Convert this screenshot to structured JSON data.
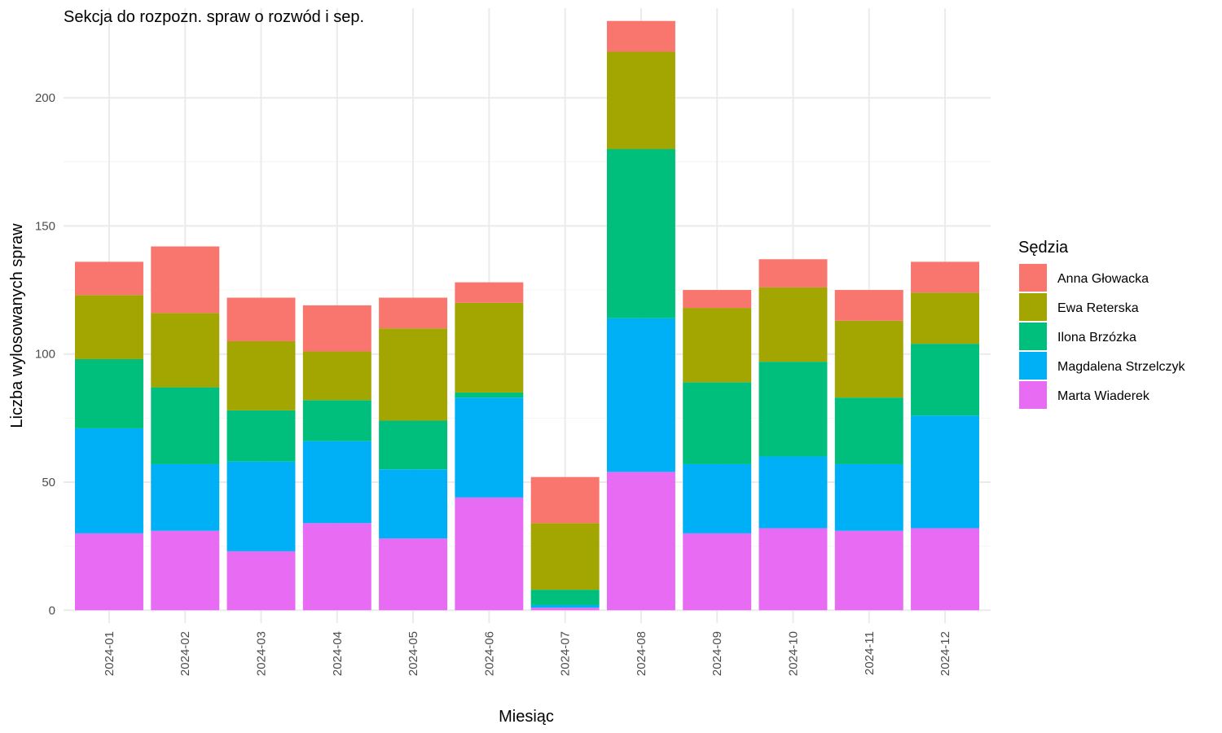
{
  "chart_data": {
    "type": "bar",
    "stacked": true,
    "title": "Sekcja do rozpozn. spraw o rozwód i sep.",
    "xlabel": "Miesiąc",
    "ylabel": "Liczba wylosowanych spraw",
    "ylim": [
      -5,
      235
    ],
    "yticks": [
      0,
      50,
      100,
      150,
      200
    ],
    "grid": true,
    "legend": {
      "title": "Sędzia",
      "position": "right"
    },
    "categories": [
      "2024-01",
      "2024-02",
      "2024-03",
      "2024-04",
      "2024-05",
      "2024-06",
      "2024-07",
      "2024-08",
      "2024-09",
      "2024-10",
      "2024-11",
      "2024-12"
    ],
    "series": [
      {
        "name": "Anna Głowacka",
        "color": "#F8766D",
        "values": [
          13,
          26,
          17,
          18,
          12,
          8,
          18,
          12,
          7,
          11,
          12,
          12
        ]
      },
      {
        "name": "Ewa Reterska",
        "color": "#A3A500",
        "values": [
          25,
          29,
          27,
          19,
          36,
          35,
          26,
          38,
          29,
          29,
          30,
          20
        ]
      },
      {
        "name": "Ilona Brzózka",
        "color": "#00BF7D",
        "values": [
          27,
          30,
          20,
          16,
          19,
          2,
          6,
          66,
          32,
          37,
          26,
          28
        ]
      },
      {
        "name": "Magdalena Strzelczyk",
        "color": "#00B0F6",
        "values": [
          41,
          26,
          35,
          32,
          27,
          39,
          1,
          60,
          27,
          28,
          26,
          44
        ]
      },
      {
        "name": "Marta Wiaderek",
        "color": "#E76BF3",
        "values": [
          30,
          31,
          23,
          34,
          28,
          44,
          1,
          54,
          30,
          32,
          31,
          32
        ]
      }
    ]
  }
}
